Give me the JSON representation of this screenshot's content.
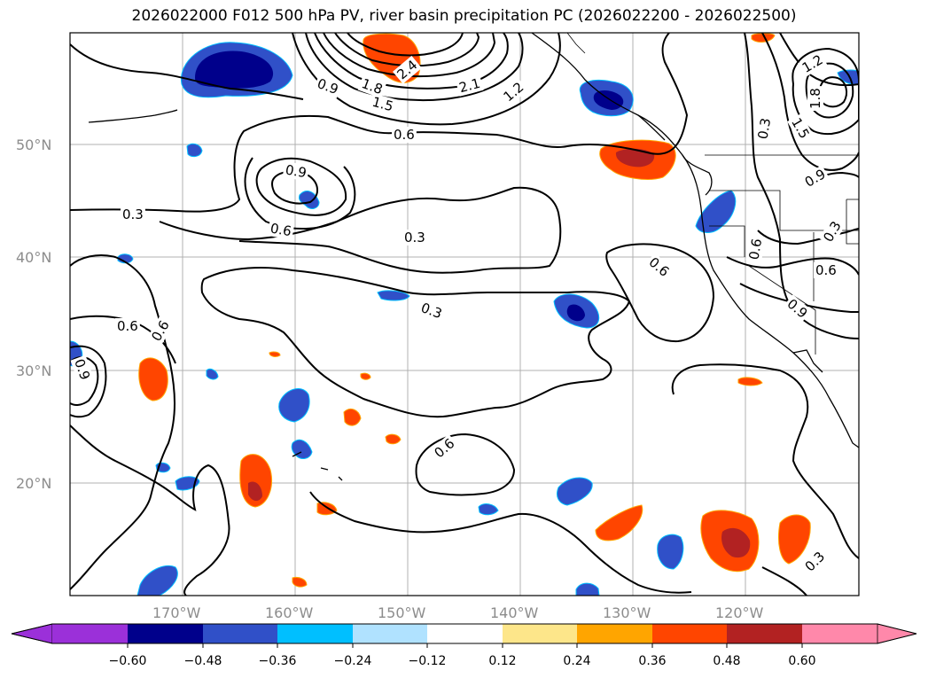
{
  "title": "2026022000 F012 500 hPa PV, river basin precipitation PC (2026022200 - 2026022500)",
  "lat_labels": [
    "50°N",
    "40°N",
    "30°N",
    "20°N"
  ],
  "lon_labels": [
    "170°W",
    "160°W",
    "150°W",
    "140°W",
    "130°W",
    "120°W"
  ],
  "contour_labels": [
    "0.9",
    "1.8",
    "1.5",
    "2.1",
    "1.2",
    "2.4",
    "0.6",
    "0.9",
    "0.3",
    "0.6",
    "0.3",
    "0.6",
    "0.3",
    "0.6",
    "0.6",
    "0.9",
    "0.6",
    "1.2",
    "1.8",
    "1.5",
    "0.3",
    "0.9",
    "0.3",
    "0.6",
    "0.6",
    "0.9",
    "0.3"
  ],
  "colorbar": {
    "ticks": [
      "−0.60",
      "−0.48",
      "−0.36",
      "−0.24",
      "−0.12",
      "0.12",
      "0.24",
      "0.36",
      "0.48",
      "0.60"
    ],
    "colors": [
      "#9b30d9",
      "#00008b",
      "#3050c8",
      "#00bfff",
      "#b0e2ff",
      "#ffffff",
      "#fde68a",
      "#ffa500",
      "#ff4500",
      "#b22222",
      "#ff88aa"
    ]
  },
  "legend_colors": {
    "neg_strong": "#00008b",
    "neg_mid": "#3050c8",
    "neg_weak": "#00bfff",
    "neg_faint": "#b0e2ff",
    "pos_faint": "#fde68a",
    "pos_weak": "#ffa500",
    "pos_mid": "#ff4500",
    "pos_strong": "#b22222"
  }
}
